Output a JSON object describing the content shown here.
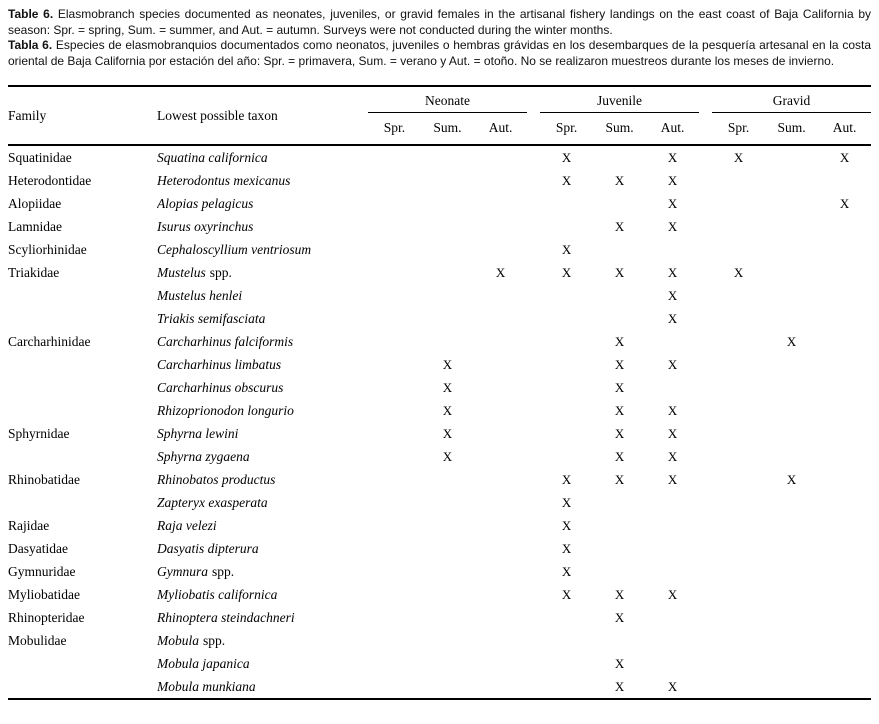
{
  "caption_en": {
    "label": "Table 6.",
    "text": "Elasmobranch species documented as neonates, juveniles, or gravid females in the artisanal fishery landings on the east coast of Baja California by season: Spr. = spring, Sum. = summer, and Aut. = autumn. Surveys were not conducted during the winter months."
  },
  "caption_es": {
    "label": "Tabla 6.",
    "text": "Especies de elasmobranquios documentados como neonatos, juveniles o hembras grávidas en los desembarques de la pesquería artesanal en la costa oriental de Baja California por estación del año: Spr. = primavera, Sum. = verano y Aut. = otoño. No se realizaron muestreos durante los meses de invierno."
  },
  "table": {
    "col_family": "Family",
    "col_taxon": "Lowest possible taxon",
    "groups": [
      {
        "label": "Neonate"
      },
      {
        "label": "Juvenile"
      },
      {
        "label": "Gravid"
      }
    ],
    "seasons": [
      "Spr.",
      "Sum.",
      "Aut."
    ],
    "rows": [
      {
        "family": "Squatinidae",
        "taxon": "Squatina californica",
        "suffix": "",
        "marks": [
          "",
          "",
          "",
          "X",
          "",
          "X",
          "X",
          "",
          "X"
        ]
      },
      {
        "family": "Heterodontidae",
        "taxon": "Heterodontus mexicanus",
        "suffix": "",
        "marks": [
          "",
          "",
          "",
          "X",
          "X",
          "X",
          "",
          "",
          ""
        ]
      },
      {
        "family": "Alopiidae",
        "taxon": "Alopias pelagicus",
        "suffix": "",
        "marks": [
          "",
          "",
          "",
          "",
          "",
          "X",
          "",
          "",
          "X"
        ]
      },
      {
        "family": "Lamnidae",
        "taxon": "Isurus oxyrinchus",
        "suffix": "",
        "marks": [
          "",
          "",
          "",
          "",
          "X",
          "X",
          "",
          "",
          ""
        ]
      },
      {
        "family": "Scyliorhinidae",
        "taxon": "Cephaloscyllium ventriosum",
        "suffix": "",
        "marks": [
          "",
          "",
          "",
          "X",
          "",
          "",
          "",
          "",
          ""
        ]
      },
      {
        "family": "Triakidae",
        "taxon": "Mustelus",
        "suffix": "spp.",
        "marks": [
          "",
          "",
          "X",
          "X",
          "X",
          "X",
          "X",
          "",
          ""
        ]
      },
      {
        "family": "",
        "taxon": "Mustelus henlei",
        "suffix": "",
        "marks": [
          "",
          "",
          "",
          "",
          "",
          "X",
          "",
          "",
          ""
        ]
      },
      {
        "family": "",
        "taxon": "Triakis semifasciata",
        "suffix": "",
        "marks": [
          "",
          "",
          "",
          "",
          "",
          "X",
          "",
          "",
          ""
        ]
      },
      {
        "family": "Carcharhinidae",
        "taxon": "Carcharhinus falciformis",
        "suffix": "",
        "marks": [
          "",
          "",
          "",
          "",
          "X",
          "",
          "",
          "X",
          ""
        ]
      },
      {
        "family": "",
        "taxon": "Carcharhinus limbatus",
        "suffix": "",
        "marks": [
          "",
          "X",
          "",
          "",
          "X",
          "X",
          "",
          "",
          ""
        ]
      },
      {
        "family": "",
        "taxon": "Carcharhinus obscurus",
        "suffix": "",
        "marks": [
          "",
          "X",
          "",
          "",
          "X",
          "",
          "",
          "",
          ""
        ]
      },
      {
        "family": "",
        "taxon": "Rhizoprionodon longurio",
        "suffix": "",
        "marks": [
          "",
          "X",
          "",
          "",
          "X",
          "X",
          "",
          "",
          ""
        ]
      },
      {
        "family": "Sphyrnidae",
        "taxon": "Sphyrna lewini",
        "suffix": "",
        "marks": [
          "",
          "X",
          "",
          "",
          "X",
          "X",
          "",
          "",
          ""
        ]
      },
      {
        "family": "",
        "taxon": "Sphyrna zygaena",
        "suffix": "",
        "marks": [
          "",
          "X",
          "",
          "",
          "X",
          "X",
          "",
          "",
          ""
        ]
      },
      {
        "family": "Rhinobatidae",
        "taxon": "Rhinobatos productus",
        "suffix": "",
        "marks": [
          "",
          "",
          "",
          "X",
          "X",
          "X",
          "",
          "X",
          ""
        ]
      },
      {
        "family": "",
        "taxon": "Zapteryx exasperata",
        "suffix": "",
        "marks": [
          "",
          "",
          "",
          "X",
          "",
          "",
          "",
          "",
          ""
        ]
      },
      {
        "family": "Rajidae",
        "taxon": "Raja velezi",
        "suffix": "",
        "marks": [
          "",
          "",
          "",
          "X",
          "",
          "",
          "",
          "",
          ""
        ]
      },
      {
        "family": "Dasyatidae",
        "taxon": "Dasyatis dipterura",
        "suffix": "",
        "marks": [
          "",
          "",
          "",
          "X",
          "",
          "",
          "",
          "",
          ""
        ]
      },
      {
        "family": "Gymnuridae",
        "taxon": "Gymnura",
        "suffix": "spp.",
        "marks": [
          "",
          "",
          "",
          "X",
          "",
          "",
          "",
          "",
          ""
        ]
      },
      {
        "family": "Myliobatidae",
        "taxon": "Myliobatis californica",
        "suffix": "",
        "marks": [
          "",
          "",
          "",
          "X",
          "X",
          "X",
          "",
          "",
          ""
        ]
      },
      {
        "family": "Rhinopteridae",
        "taxon": "Rhinoptera steindachneri",
        "suffix": "",
        "marks": [
          "",
          "",
          "",
          "",
          "X",
          "",
          "",
          "",
          ""
        ]
      },
      {
        "family": "Mobulidae",
        "taxon": "Mobula",
        "suffix": "spp.",
        "marks": [
          "",
          "",
          "",
          "",
          "",
          "",
          "",
          "",
          ""
        ]
      },
      {
        "family": "",
        "taxon": "Mobula japanica",
        "suffix": "",
        "marks": [
          "",
          "",
          "",
          "",
          "X",
          "",
          "",
          "",
          ""
        ]
      },
      {
        "family": "",
        "taxon": "Mobula munkiana",
        "suffix": "",
        "marks": [
          "",
          "",
          "",
          "",
          "X",
          "X",
          "",
          "",
          ""
        ]
      }
    ]
  }
}
